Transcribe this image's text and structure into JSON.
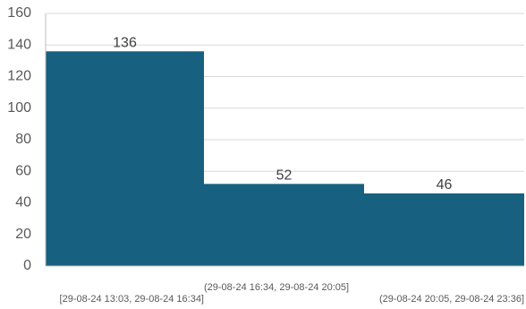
{
  "chart_data": {
    "type": "bar",
    "categories": [
      "[29-08-24 13:03, 29-08-24 16:34]",
      "(29-08-24 16:34, 29-08-24 20:05]",
      "(29-08-24 20:05, 29-08-24 23:36]"
    ],
    "values": [
      136,
      52,
      46
    ],
    "data_labels": [
      "136",
      "52",
      "46"
    ],
    "title": "",
    "xlabel": "",
    "ylabel": "",
    "ylim": [
      0,
      160
    ],
    "yticks": [
      0,
      20,
      40,
      60,
      80,
      100,
      120,
      140,
      160
    ],
    "grid": true,
    "legend": "none",
    "bar_color": "#17607f"
  }
}
